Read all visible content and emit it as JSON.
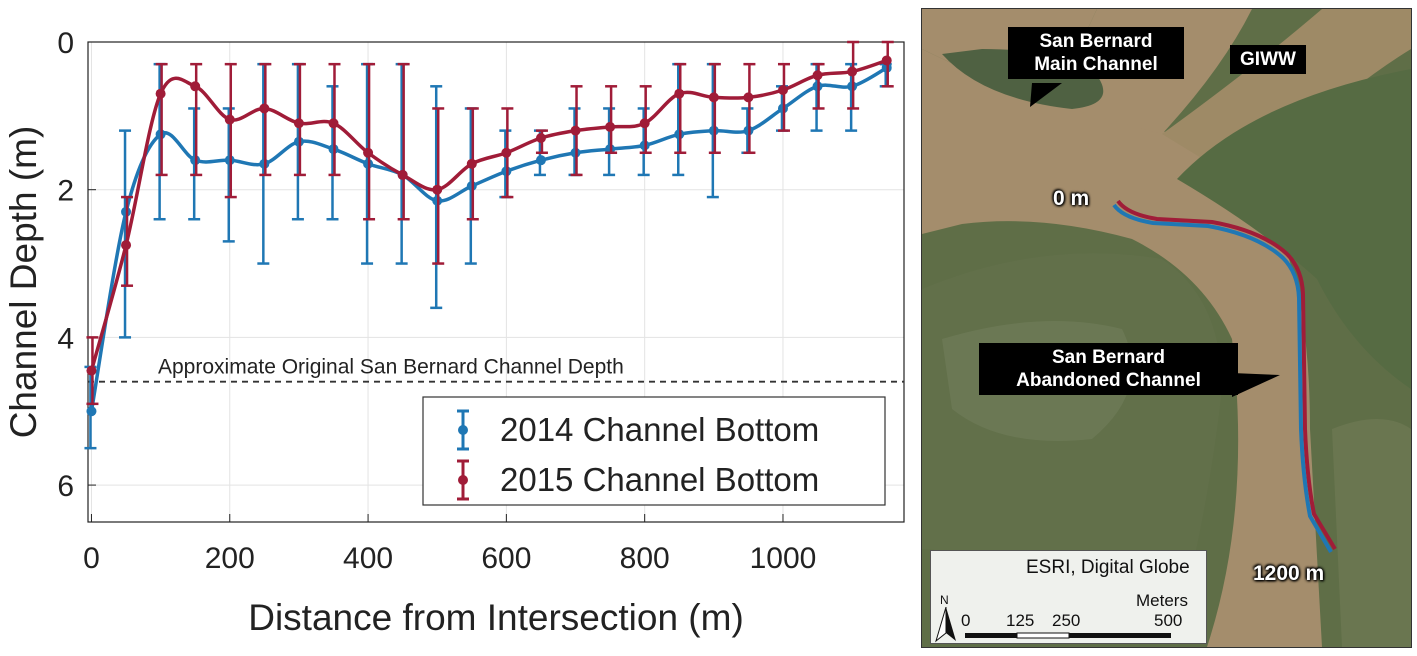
{
  "chart_data": {
    "type": "line",
    "title": "",
    "xlabel": "Distance from Intersection (m)",
    "ylabel": "Channel Depth (m)",
    "xlim": [
      -5,
      1175
    ],
    "ylim": [
      0,
      6.5
    ],
    "y_inverted": true,
    "xticks": [
      "0",
      "200",
      "400",
      "600",
      "800",
      "1000"
    ],
    "xtick_values": [
      0,
      200,
      400,
      600,
      800,
      1000
    ],
    "yticks": [
      "0",
      "2",
      "4",
      "6"
    ],
    "ytick_values": [
      0,
      2,
      4,
      6
    ],
    "grid": true,
    "legend_position": "bottom-right",
    "reference_line": {
      "label": "Approximate Original San Bernard Channel Depth",
      "y": 4.6,
      "style": "dashed"
    },
    "series": [
      {
        "name": "2014 Channel Bottom",
        "color": "#1f77b4",
        "x": [
          0,
          50,
          100,
          150,
          200,
          250,
          300,
          350,
          400,
          450,
          500,
          550,
          600,
          650,
          700,
          750,
          800,
          850,
          900,
          950,
          1000,
          1050,
          1100,
          1150
        ],
        "y": [
          5.0,
          2.3,
          1.25,
          1.6,
          1.6,
          1.65,
          1.35,
          1.45,
          1.65,
          1.8,
          2.15,
          1.95,
          1.75,
          1.6,
          1.5,
          1.45,
          1.4,
          1.25,
          1.2,
          1.2,
          0.9,
          0.6,
          0.6,
          0.35
        ],
        "err_low": [
          4.4,
          1.2,
          0.3,
          0.9,
          0.9,
          0.3,
          0.3,
          0.6,
          0.3,
          0.3,
          0.6,
          0.9,
          1.2,
          1.2,
          0.9,
          0.9,
          0.9,
          0.3,
          0.3,
          0.9,
          0.6,
          0.3,
          0.3,
          0.3
        ],
        "err_high": [
          5.5,
          4.0,
          2.4,
          2.4,
          2.7,
          3.0,
          2.4,
          2.4,
          3.0,
          3.0,
          3.6,
          3.0,
          2.1,
          1.8,
          1.8,
          1.8,
          1.8,
          1.8,
          2.1,
          1.5,
          1.2,
          1.2,
          1.2,
          0.6
        ]
      },
      {
        "name": "2015 Channel Bottom",
        "color": "#a01c38",
        "x": [
          0,
          50,
          100,
          150,
          200,
          250,
          300,
          350,
          400,
          450,
          500,
          550,
          600,
          650,
          700,
          750,
          800,
          850,
          900,
          950,
          1000,
          1050,
          1100,
          1150
        ],
        "y": [
          4.45,
          2.75,
          0.7,
          0.6,
          1.05,
          0.9,
          1.1,
          1.1,
          1.5,
          1.8,
          2.0,
          1.65,
          1.5,
          1.3,
          1.2,
          1.15,
          1.1,
          0.7,
          0.75,
          0.75,
          0.65,
          0.45,
          0.4,
          0.25
        ],
        "err_low": [
          4.0,
          2.1,
          0.3,
          0.3,
          0.3,
          0.3,
          0.3,
          0.3,
          0.3,
          0.3,
          0.9,
          0.9,
          0.9,
          1.2,
          0.6,
          0.6,
          0.6,
          0.3,
          0.3,
          0.3,
          0.3,
          0.3,
          0.0,
          0.0
        ],
        "err_high": [
          4.9,
          3.3,
          1.8,
          1.8,
          2.1,
          1.8,
          1.8,
          1.8,
          2.4,
          2.4,
          3.0,
          2.4,
          2.1,
          1.5,
          1.8,
          1.5,
          1.5,
          1.5,
          1.5,
          1.5,
          1.2,
          0.9,
          0.9,
          0.6
        ]
      }
    ]
  },
  "map": {
    "callout_main_line1": "San Bernard",
    "callout_main_line2": "Main Channel",
    "label_giww": "GIWW",
    "label_start": "0 m",
    "label_end": "1200 m",
    "callout_abandoned_line1": "San Bernard",
    "callout_abandoned_line2": "Abandoned Channel",
    "attribution": "ESRI, Digital Globe",
    "north_label": "N",
    "scale_unit": "Meters",
    "scale_ticks": [
      "0",
      "125",
      "250",
      "500"
    ],
    "colors": {
      "line_2014": "#1f77b4",
      "line_2015": "#a01c38",
      "water": "#a48d6c",
      "vegetation": "#5c6c45"
    }
  }
}
